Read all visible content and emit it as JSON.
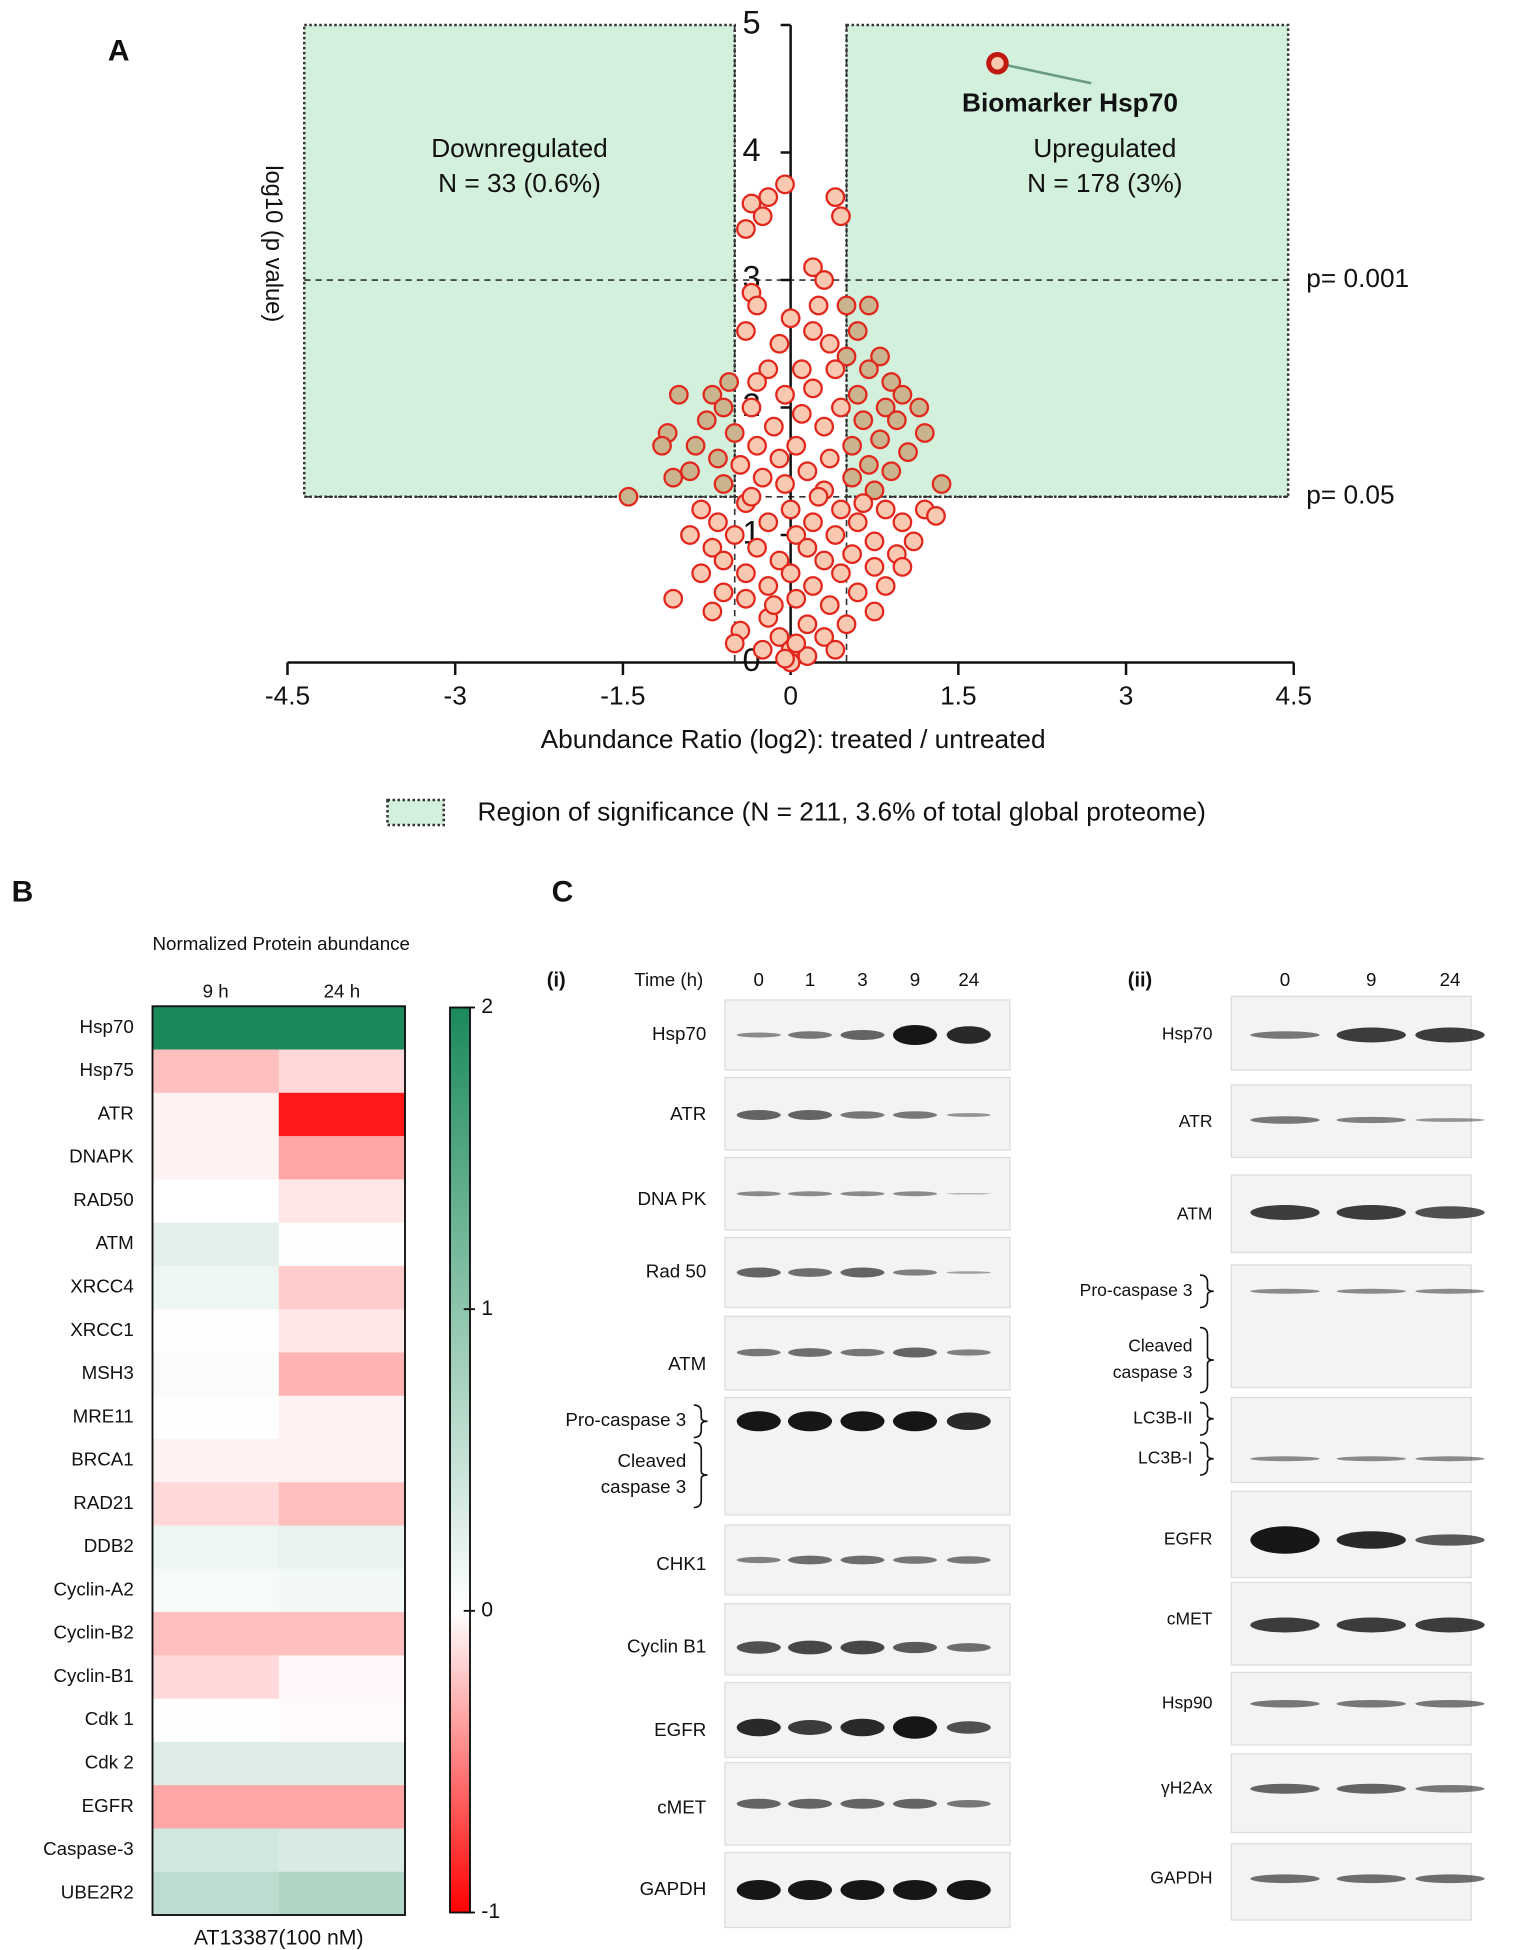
{
  "chart_data": [
    {
      "type": "scatter",
      "panel_label": "A",
      "xlabel": "Abundance Ratio (log2): treated / untreated",
      "ylabel": "log10 (p value)",
      "x": [
        -0.35,
        -0.25,
        -0.4,
        -0.2,
        -0.05,
        0.4,
        0.45,
        -0.35,
        0.2,
        0.3,
        -0.3,
        0.25,
        0.5,
        0.7,
        -0.4,
        0,
        0.2,
        0.6,
        0.35,
        -0.1,
        0.5,
        0.8,
        -0.2,
        0.1,
        0.4,
        0.7,
        0.9,
        -0.55,
        -0.3,
        -0.7,
        1,
        0.6,
        0.2,
        -0.05,
        -1,
        -0.6,
        1.15,
        0.85,
        -0.35,
        0.45,
        0.1,
        -0.75,
        -1.1,
        0.95,
        0.65,
        -0.15,
        0.3,
        -0.5,
        1.2,
        -1.15,
        0.8,
        -0.85,
        0.55,
        -0.3,
        0.05,
        1.05,
        -0.65,
        0.35,
        -0.1,
        0.7,
        -0.45,
        -0.9,
        0.9,
        -1.05,
        0.15,
        -0.25,
        0.55,
        1.35,
        -0.6,
        -1.45,
        0.75,
        0.3,
        -0.05,
        -0.8,
        -0.4,
        0,
        0.45,
        0.85,
        1.2,
        1.3,
        -0.65,
        -0.2,
        0.2,
        0.6,
        1,
        -0.9,
        -0.5,
        0.05,
        0.4,
        0.75,
        1.1,
        -0.7,
        -0.3,
        0.15,
        0.55,
        0.95,
        -0.6,
        -0.1,
        0.3,
        0.75,
        1,
        -0.8,
        -0.4,
        0,
        0.45,
        0.85,
        -0.2,
        0.2,
        -0.6,
        0.6,
        -1.05,
        -0.4,
        0.05,
        0.35,
        0.75,
        -0.7,
        -0.2,
        0.15,
        0.5,
        -0.45,
        -0.1,
        0.3,
        0,
        -0.25,
        0.15,
        0,
        -0.05,
        0.05,
        -0.15,
        0.25,
        -0.35,
        0.65,
        -0.5,
        0.4
      ],
      "values": [
        3.6,
        3.5,
        3.4,
        3.65,
        3.75,
        3.65,
        3.5,
        2.9,
        3.1,
        3,
        2.8,
        2.8,
        2.8,
        2.8,
        2.6,
        2.7,
        2.6,
        2.6,
        2.5,
        2.5,
        2.4,
        2.4,
        2.3,
        2.3,
        2.3,
        2.3,
        2.2,
        2.2,
        2.2,
        2.1,
        2.1,
        2.1,
        2.15,
        2.1,
        2.1,
        2,
        2,
        2,
        2,
        2,
        1.95,
        1.9,
        1.8,
        1.9,
        1.9,
        1.85,
        1.85,
        1.8,
        1.8,
        1.7,
        1.75,
        1.7,
        1.7,
        1.7,
        1.7,
        1.65,
        1.6,
        1.6,
        1.6,
        1.55,
        1.55,
        1.5,
        1.5,
        1.45,
        1.5,
        1.45,
        1.45,
        1.4,
        1.4,
        1.3,
        1.35,
        1.35,
        1.4,
        1.2,
        1.25,
        1.2,
        1.2,
        1.2,
        1.2,
        1.15,
        1.1,
        1.1,
        1.1,
        1.1,
        1.1,
        1,
        1,
        1,
        1,
        0.95,
        0.95,
        0.9,
        0.9,
        0.9,
        0.85,
        0.85,
        0.8,
        0.8,
        0.8,
        0.75,
        0.75,
        0.7,
        0.7,
        0.7,
        0.7,
        0.6,
        0.6,
        0.6,
        0.55,
        0.55,
        0.5,
        0.5,
        0.5,
        0.45,
        0.4,
        0.4,
        0.35,
        0.3,
        0.3,
        0.25,
        0.2,
        0.2,
        0.1,
        0.1,
        0.05,
        0,
        0.03,
        0.15,
        0.45,
        1.3,
        1.3,
        1.25,
        0.15,
        0.1
      ],
      "xlim": [
        -4.5,
        4.5
      ],
      "ylim": [
        0,
        5
      ],
      "xticks": [
        -4.5,
        -3,
        -1.5,
        0,
        1.5,
        3,
        4.5
      ],
      "yticks": [
        0,
        1,
        2,
        3,
        4,
        5
      ],
      "regions": [
        {
          "xlim": [
            -4.35,
            -0.5
          ],
          "ylim": [
            1.3,
            5
          ],
          "label": "Downregulated",
          "note": "N = 33 (0.6%)"
        },
        {
          "xlim": [
            0.5,
            4.45
          ],
          "ylim": [
            1.3,
            5
          ],
          "label": "Upregulated",
          "note": "N = 178 (3%)"
        }
      ],
      "region_color": "#d3f0dd",
      "thresholds": [
        {
          "value": 3,
          "label": "p= 0.001"
        },
        {
          "value": 1.3,
          "label": "p= 0.05"
        }
      ],
      "fold_lines": [
        -0.5,
        0.5
      ],
      "highlight": {
        "label": "Biomarker Hsp70",
        "x": 1.85,
        "y": 4.7,
        "color": "#2e6b4a"
      },
      "legend": "Region of significance (N = 211, 3.6% of total global proteome)",
      "point_color": "#f8c8b0",
      "point_stroke": "#e3261c",
      "significant_color": "#c9b48e"
    },
    {
      "type": "heatmap",
      "panel_label": "B",
      "title": "Normalized Protein abundance",
      "columns": [
        "9 h",
        "24 h"
      ],
      "rows": [
        "Hsp70",
        "Hsp75",
        "ATR",
        "DNAPK",
        "RAD50",
        "ATM",
        "XRCC4",
        "XRCC1",
        "MSH3",
        "MRE11",
        "BRCA1",
        "RAD21",
        "DDB2",
        "Cyclin-A2",
        "Cyclin-B2",
        "Cyclin-B1",
        "Cdk 1",
        "Cdk 2",
        "EGFR",
        "Caspase-3",
        "UBE2R2"
      ],
      "values": [
        [
          2,
          2
        ],
        [
          -0.25,
          -0.15
        ],
        [
          -0.05,
          -0.9
        ],
        [
          -0.05,
          -0.35
        ],
        [
          0,
          -0.1
        ],
        [
          0.25,
          0.03
        ],
        [
          0.15,
          -0.2
        ],
        [
          0.02,
          -0.1
        ],
        [
          0.05,
          -0.3
        ],
        [
          0.02,
          -0.05
        ],
        [
          -0.05,
          -0.05
        ],
        [
          -0.15,
          -0.25
        ],
        [
          0.15,
          0.2
        ],
        [
          0.08,
          0.12
        ],
        [
          -0.25,
          -0.25
        ],
        [
          -0.15,
          -0.03
        ],
        [
          0.01,
          -0.02
        ],
        [
          0.3,
          0.3
        ],
        [
          -0.35,
          -0.35
        ],
        [
          0.4,
          0.35
        ],
        [
          0.6,
          0.7
        ]
      ],
      "clim": [
        -1,
        2
      ],
      "cticks": [
        -1,
        0,
        1,
        2
      ],
      "colors": {
        "low": "#ff0000",
        "mid": "#ffffff",
        "high": "#1b8a5a"
      },
      "xlabel": "AT13387(100 nM)"
    }
  ],
  "blots": {
    "panel_label": "C",
    "panels": [
      {
        "label": "(i)",
        "lane_header": "Time (h)",
        "lanes": [
          "0",
          "1",
          "3",
          "9",
          "24"
        ],
        "rows": [
          {
            "labels": [
              [
                "Hsp70"
              ]
            ]
          },
          {
            "labels": [
              [
                "ATR"
              ]
            ]
          },
          {
            "labels": [
              [
                "DNA PK"
              ]
            ]
          },
          {
            "labels": [
              [
                "Rad 50"
              ]
            ]
          },
          {
            "labels": [
              [
                "ATM"
              ]
            ]
          },
          {
            "labels": [
              [
                "Pro-caspase 3"
              ],
              [
                "Cleaved",
                "caspase 3"
              ]
            ]
          },
          {
            "labels": [
              [
                "CHK1"
              ]
            ]
          },
          {
            "labels": [
              [
                "Cyclin B1"
              ]
            ]
          },
          {
            "labels": [
              [
                "EGFR"
              ]
            ]
          },
          {
            "labels": [
              [
                "cMET"
              ]
            ]
          },
          {
            "labels": [
              [
                "GAPDH"
              ]
            ]
          }
        ]
      },
      {
        "label": "(ii)",
        "lanes": [
          "0",
          "9",
          "24"
        ],
        "rows": [
          {
            "labels": [
              [
                "Hsp70"
              ]
            ]
          },
          {
            "labels": [
              [
                "ATR"
              ]
            ]
          },
          {
            "labels": [
              [
                "ATM"
              ]
            ]
          },
          {
            "labels": [
              [
                "Pro-caspase 3"
              ],
              [
                "Cleaved",
                "caspase 3"
              ]
            ]
          },
          {
            "labels": [
              [
                "LC3B-II"
              ],
              [
                "LC3B-I"
              ]
            ]
          },
          {
            "labels": [
              [
                "EGFR"
              ]
            ]
          },
          {
            "labels": [
              [
                "cMET"
              ]
            ]
          },
          {
            "labels": [
              [
                "Hsp90"
              ]
            ]
          },
          {
            "labels": [
              [
                "γH2Ax"
              ]
            ]
          },
          {
            "labels": [
              [
                "GAPDH"
              ]
            ]
          }
        ]
      }
    ]
  }
}
